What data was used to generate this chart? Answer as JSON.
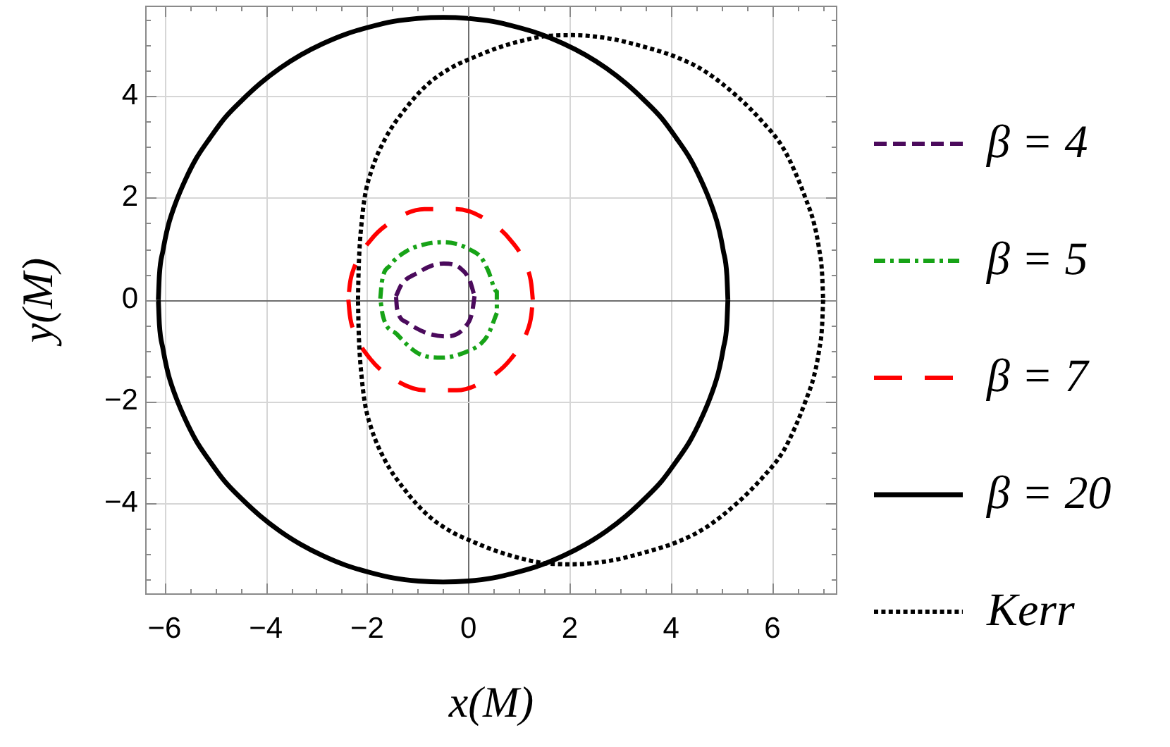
{
  "chart_data": {
    "type": "line",
    "xlabel": "x(M)",
    "ylabel": "y(M)",
    "xlim": [
      -6.38,
      7.28
    ],
    "ylim": [
      -5.8,
      5.78
    ],
    "xticks": [
      -6,
      {
        "value": -5.5,
        "label": null
      },
      {
        "value": -5,
        "label": null
      },
      {
        "value": -4.5,
        "label": null
      },
      -4,
      {
        "value": -3.5,
        "label": null
      },
      {
        "value": -3,
        "label": null
      },
      {
        "value": -2.5,
        "label": null
      },
      -2,
      {
        "value": -1.5,
        "label": null
      },
      {
        "value": -1,
        "label": null
      },
      {
        "value": -0.5,
        "label": null
      },
      0,
      {
        "value": 0.5,
        "label": null
      },
      {
        "value": 1,
        "label": null
      },
      {
        "value": 1.5,
        "label": null
      },
      2,
      {
        "value": 2.5,
        "label": null
      },
      {
        "value": 3,
        "label": null
      },
      {
        "value": 3.5,
        "label": null
      },
      4,
      {
        "value": 4.5,
        "label": null
      },
      {
        "value": 5,
        "label": null
      },
      {
        "value": 5.5,
        "label": null
      },
      6,
      {
        "value": 6.5,
        "label": null
      },
      {
        "value": 7,
        "label": null
      }
    ],
    "yticks": [
      {
        "value": -5.5,
        "label": null
      },
      {
        "value": -5,
        "label": null
      },
      {
        "value": -4.5,
        "label": null
      },
      -4,
      {
        "value": -3.5,
        "label": null
      },
      {
        "value": -3,
        "label": null
      },
      {
        "value": -2.5,
        "label": null
      },
      -2,
      {
        "value": -1.5,
        "label": null
      },
      {
        "value": -1,
        "label": null
      },
      {
        "value": -0.5,
        "label": null
      },
      0,
      {
        "value": 0.5,
        "label": null
      },
      {
        "value": 1,
        "label": null
      },
      {
        "value": 1.5,
        "label": null
      },
      2,
      {
        "value": 2.5,
        "label": null
      },
      {
        "value": 3,
        "label": null
      },
      {
        "value": 3.5,
        "label": null
      },
      4,
      {
        "value": 4.5,
        "label": null
      },
      {
        "value": 5,
        "label": null
      },
      {
        "value": 5.5,
        "label": null
      }
    ],
    "grid": true,
    "legend": "right",
    "series": [
      {
        "name": "β = 4",
        "color": "#4b0a5c",
        "line_style": "dashed",
        "x": [
          -1.43,
          -1.32,
          -1.0,
          -0.72,
          -0.49,
          -0.16,
          0.02,
          0.12,
          0.07,
          -0.07,
          -0.44,
          -0.81,
          -1.23,
          -1.41,
          -1.43
        ],
        "values": [
          0.07,
          0.3,
          0.53,
          0.67,
          0.71,
          0.62,
          0.39,
          0.07,
          -0.26,
          -0.54,
          -0.72,
          -0.66,
          -0.44,
          -0.17,
          0.07
        ]
      },
      {
        "name": "β = 5",
        "color": "#17a317",
        "line_style": "dashdot",
        "x": [
          -1.74,
          -1.71,
          -1.55,
          -1.23,
          -0.9,
          -0.53,
          -0.25,
          0.02,
          0.25,
          0.39,
          0.56,
          0.56,
          0.39,
          0.25,
          0.02,
          -0.53,
          -1.0,
          -1.41,
          -1.69,
          -1.74
        ],
        "values": [
          0.02,
          0.34,
          0.67,
          0.95,
          1.08,
          1.13,
          1.1,
          0.99,
          0.83,
          0.57,
          0.16,
          -0.26,
          -0.68,
          -0.86,
          -1.0,
          -1.14,
          -1.05,
          -0.68,
          -0.31,
          0.02
        ]
      },
      {
        "name": "β = 7",
        "color": "#ff0000",
        "line_style": "longdash",
        "x": [
          1.27,
          1.24,
          1.16,
          0.84,
          0.36,
          -0.23,
          -0.87,
          -1.46,
          -1.94,
          -2.26,
          -2.34,
          -2.37,
          -2.34,
          -2.26,
          -1.94,
          -1.46,
          -0.87,
          -0.23,
          0.36,
          0.84,
          1.16,
          1.24,
          1.27
        ],
        "values": [
          0,
          0.31,
          0.62,
          1.16,
          1.57,
          1.78,
          1.78,
          1.57,
          1.16,
          0.62,
          0.31,
          0,
          -0.31,
          -0.62,
          -1.16,
          -1.57,
          -1.78,
          -1.78,
          -1.57,
          -1.16,
          -0.62,
          -0.31,
          0
        ]
      },
      {
        "name": "β = 20",
        "color": "#000000",
        "line_style": "solid",
        "x": [
          5.12,
          5.1,
          5.03,
          4.93,
          4.78,
          4.59,
          4.37,
          4.1,
          3.81,
          3.47,
          3.11,
          2.72,
          2.31,
          1.88,
          1.42,
          0.95,
          0.48,
          -0.01,
          -0.5,
          -0.99,
          -1.48,
          -1.95,
          -2.42,
          -2.88,
          -3.31,
          -3.72,
          -4.11,
          -4.47,
          -4.81,
          -5.1,
          -5.37,
          -5.59,
          -5.78,
          -5.93,
          -6.03,
          -6.1,
          -6.12,
          -6.1,
          -6.03,
          -5.93,
          -5.78,
          -5.59,
          -5.37,
          -5.1,
          -4.81,
          -4.47,
          -4.11,
          -3.72,
          -3.31,
          -2.88,
          -2.42,
          -1.95,
          -1.48,
          -0.99,
          -0.5,
          -0.01,
          0.48,
          0.95,
          1.42,
          1.88,
          2.31,
          2.72,
          3.11,
          3.47,
          3.81,
          4.1,
          4.37,
          4.59,
          4.78,
          4.93,
          5.03,
          5.1,
          5.12
        ],
        "values": [
          0,
          0.48,
          0.96,
          1.44,
          1.9,
          2.35,
          2.78,
          3.18,
          3.57,
          3.92,
          4.25,
          4.55,
          4.81,
          5.03,
          5.22,
          5.36,
          5.47,
          5.53,
          5.55,
          5.53,
          5.47,
          5.36,
          5.22,
          5.03,
          4.81,
          4.55,
          4.25,
          3.92,
          3.57,
          3.18,
          2.78,
          2.35,
          1.9,
          1.44,
          0.96,
          0.48,
          0,
          -0.48,
          -0.96,
          -1.44,
          -1.9,
          -2.35,
          -2.78,
          -3.18,
          -3.57,
          -3.92,
          -4.25,
          -4.55,
          -4.81,
          -5.03,
          -5.22,
          -5.36,
          -5.47,
          -5.53,
          -5.55,
          -5.53,
          -5.47,
          -5.36,
          -5.22,
          -5.03,
          -4.81,
          -4.55,
          -4.25,
          -3.92,
          -3.57,
          -3.18,
          -2.78,
          -2.35,
          -1.9,
          -1.44,
          -0.96,
          -0.48,
          0
        ]
      },
      {
        "name": "Kerr",
        "color": "#000000",
        "line_style": "dotted",
        "x": [
          -2.18,
          -2.17,
          -2.15,
          -2.11,
          -2.05,
          -1.92,
          -1.64,
          -1.27,
          -0.81,
          -0.34,
          0,
          0.58,
          1.14,
          1.51,
          2.06,
          2.8,
          3.54,
          4.1,
          4.65,
          5.3,
          5.8,
          6.2,
          6.45,
          6.65,
          6.82,
          6.92,
          6.98,
          7.0,
          6.98,
          6.92,
          6.82,
          6.65,
          6.45,
          6.2,
          5.8,
          5.3,
          4.65,
          4.1,
          3.54,
          2.8,
          2.06,
          1.51,
          1.14,
          0.58,
          0,
          -0.34,
          -0.81,
          -1.27,
          -1.64,
          -1.92,
          -2.05,
          -2.11,
          -2.15,
          -2.17,
          -2.18
        ],
        "values": [
          0,
          0.5,
          1.0,
          1.5,
          2.0,
          2.52,
          3.17,
          3.72,
          4.23,
          4.56,
          4.72,
          4.95,
          5.11,
          5.18,
          5.2,
          5.13,
          4.95,
          4.77,
          4.5,
          4.0,
          3.5,
          3.0,
          2.5,
          2.0,
          1.5,
          1.0,
          0.5,
          0,
          -0.5,
          -1.0,
          -1.5,
          -2.0,
          -2.5,
          -3.0,
          -3.5,
          -4.0,
          -4.5,
          -4.77,
          -4.95,
          -5.13,
          -5.2,
          -5.18,
          -5.11,
          -4.95,
          -4.72,
          -4.56,
          -4.23,
          -3.72,
          -3.17,
          -2.52,
          -2.0,
          -1.5,
          -1.0,
          -0.5,
          0
        ]
      }
    ]
  }
}
